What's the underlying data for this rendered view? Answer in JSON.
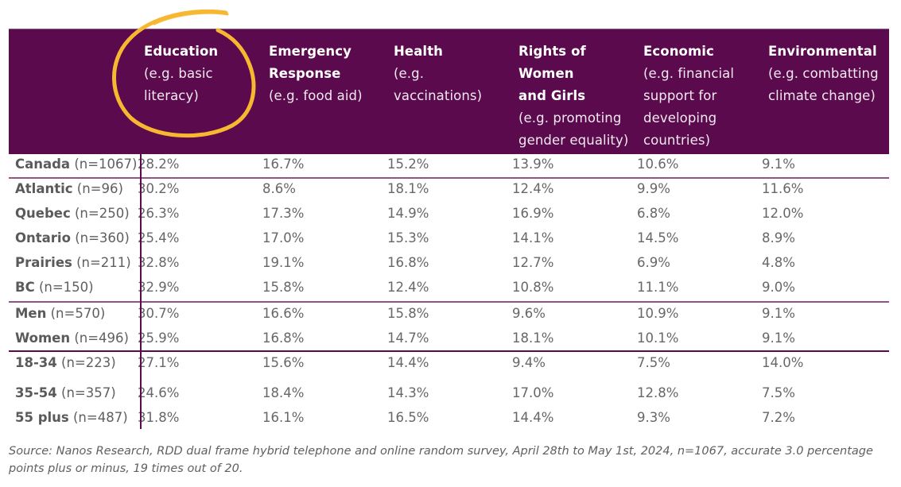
{
  "table": {
    "columns": [
      {
        "title": "Education",
        "subtitle": "(e.g. basic literacy)",
        "title_lines": [
          "Education"
        ],
        "sub_lines": [
          "(e.g. basic",
          "literacy)"
        ],
        "highlighted": true
      },
      {
        "title": "Emergency Response",
        "subtitle": "(e.g. food aid)",
        "title_lines": [
          "Emergency",
          "Response"
        ],
        "sub_lines": [
          "(e.g. food aid)"
        ],
        "highlighted": false
      },
      {
        "title": "Health",
        "subtitle": "(e.g. vaccinations)",
        "title_lines": [
          "Health"
        ],
        "sub_lines": [
          "(e.g.",
          "vaccinations)"
        ],
        "highlighted": false
      },
      {
        "title": "Rights of Women and Girls",
        "subtitle": "(e.g. promoting gender equality)",
        "title_lines": [
          "Rights of",
          "Women",
          "and Girls"
        ],
        "sub_lines": [
          "(e.g. promoting",
          "gender equality)"
        ],
        "highlighted": false
      },
      {
        "title": "Economic",
        "subtitle": "(e.g. financial support for developing countries)",
        "title_lines": [
          "Economic"
        ],
        "sub_lines": [
          "(e.g. financial",
          "support for",
          "developing",
          "countries)"
        ],
        "highlighted": false
      },
      {
        "title": "Environmental",
        "subtitle": "(e.g. combatting climate change)",
        "title_lines": [
          "Environmental"
        ],
        "sub_lines": [
          "(e.g. combatting",
          "climate change)"
        ],
        "highlighted": false
      }
    ],
    "rows": [
      {
        "group": "total",
        "name": "Canada",
        "n": "(n=1067)",
        "values": [
          "28.2%",
          "16.7%",
          "15.2%",
          "13.9%",
          "10.6%",
          "9.1%"
        ]
      },
      {
        "group": "region",
        "name": "Atlantic",
        "n": "(n=96)",
        "values": [
          "30.2%",
          "8.6%",
          "18.1%",
          "12.4%",
          "9.9%",
          "11.6%"
        ]
      },
      {
        "group": "region",
        "name": "Quebec",
        "n": "(n=250)",
        "values": [
          "26.3%",
          "17.3%",
          "14.9%",
          "16.9%",
          "6.8%",
          "12.0%"
        ]
      },
      {
        "group": "region",
        "name": "Ontario",
        "n": "(n=360)",
        "values": [
          "25.4%",
          "17.0%",
          "15.3%",
          "14.1%",
          "14.5%",
          "8.9%"
        ]
      },
      {
        "group": "region",
        "name": "Prairies",
        "n": "(n=211)",
        "values": [
          "32.8%",
          "19.1%",
          "16.8%",
          "12.7%",
          "6.9%",
          "4.8%"
        ]
      },
      {
        "group": "region",
        "name": "BC",
        "n": "(n=150)",
        "values": [
          "32.9%",
          "15.8%",
          "12.4%",
          "10.8%",
          "11.1%",
          "9.0%"
        ]
      },
      {
        "group": "gender",
        "name": "Men",
        "n": "(n=570)",
        "values": [
          "30.7%",
          "16.6%",
          "15.8%",
          "9.6%",
          "10.9%",
          "9.1%"
        ]
      },
      {
        "group": "gender",
        "name": "Women",
        "n": "(n=496)",
        "values": [
          "25.9%",
          "16.8%",
          "14.7%",
          "18.1%",
          "10.1%",
          "9.1%"
        ]
      },
      {
        "group": "age",
        "name": "18-34",
        "n": "(n=223)",
        "values": [
          "27.1%",
          "15.6%",
          "14.4%",
          "9.4%",
          "7.5%",
          "14.0%"
        ]
      },
      {
        "group": "age",
        "name": "35-54",
        "n": "(n=357)",
        "values": [
          "24.6%",
          "18.4%",
          "14.3%",
          "17.0%",
          "12.8%",
          "7.5%"
        ]
      },
      {
        "group": "age",
        "name": "55 plus",
        "n": "(n=487)",
        "values": [
          "31.8%",
          "16.1%",
          "16.5%",
          "14.4%",
          "9.3%",
          "7.2%"
        ]
      }
    ]
  },
  "colors": {
    "header_bg": "#5b0a4d",
    "highlight_circle": "#f7b731",
    "text": "#5f5f5f"
  },
  "source_note": "Source: Nanos Research, RDD dual frame hybrid telephone and online random survey, April 28th to May 1st, 2024, n=1067, accurate 3.0 percentage points plus or minus, 19 times out of 20."
}
